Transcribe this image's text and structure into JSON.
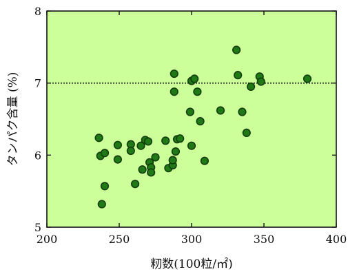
{
  "chart_data": {
    "type": "scatter",
    "title": "",
    "xlabel": "籾数(100粒/㎡)",
    "ylabel": "タンパク含量 (%)",
    "xlim": [
      200,
      400
    ],
    "ylim": [
      5,
      8
    ],
    "xticks": [
      "200",
      "250",
      "300",
      "350",
      "400"
    ],
    "yticks": [
      "5",
      "6",
      "7",
      "8"
    ],
    "xtick_values": [
      200,
      250,
      300,
      350,
      400
    ],
    "ytick_values": [
      5,
      6,
      7,
      8
    ],
    "reference_line_y": 7.0,
    "grid": false,
    "colors": {
      "plot_bg": "#ccff99",
      "point_fill": "#1f7a16",
      "point_stroke": "#143d0c"
    },
    "points": [
      {
        "x": 236,
        "y": 6.24
      },
      {
        "x": 237,
        "y": 5.99
      },
      {
        "x": 238,
        "y": 5.32
      },
      {
        "x": 240,
        "y": 6.03
      },
      {
        "x": 240,
        "y": 5.57
      },
      {
        "x": 249,
        "y": 6.14
      },
      {
        "x": 249,
        "y": 5.94
      },
      {
        "x": 258,
        "y": 6.15
      },
      {
        "x": 258,
        "y": 6.06
      },
      {
        "x": 261,
        "y": 5.6
      },
      {
        "x": 265,
        "y": 6.13
      },
      {
        "x": 266,
        "y": 5.8
      },
      {
        "x": 268,
        "y": 6.21
      },
      {
        "x": 270,
        "y": 6.19
      },
      {
        "x": 271,
        "y": 5.9
      },
      {
        "x": 272,
        "y": 5.83
      },
      {
        "x": 272,
        "y": 5.76
      },
      {
        "x": 275,
        "y": 5.97
      },
      {
        "x": 282,
        "y": 6.2
      },
      {
        "x": 284,
        "y": 5.82
      },
      {
        "x": 287,
        "y": 5.86
      },
      {
        "x": 287,
        "y": 5.93
      },
      {
        "x": 288,
        "y": 6.88
      },
      {
        "x": 288,
        "y": 7.13
      },
      {
        "x": 289,
        "y": 6.05
      },
      {
        "x": 290,
        "y": 6.22
      },
      {
        "x": 292,
        "y": 6.23
      },
      {
        "x": 299,
        "y": 6.6
      },
      {
        "x": 300,
        "y": 7.03
      },
      {
        "x": 300,
        "y": 6.13
      },
      {
        "x": 302,
        "y": 7.06
      },
      {
        "x": 304,
        "y": 6.88
      },
      {
        "x": 306,
        "y": 6.47
      },
      {
        "x": 309,
        "y": 5.92
      },
      {
        "x": 320,
        "y": 6.62
      },
      {
        "x": 331,
        "y": 7.46
      },
      {
        "x": 332,
        "y": 7.11
      },
      {
        "x": 335,
        "y": 6.6
      },
      {
        "x": 338,
        "y": 6.31
      },
      {
        "x": 341,
        "y": 6.95
      },
      {
        "x": 347,
        "y": 7.09
      },
      {
        "x": 348,
        "y": 7.02
      },
      {
        "x": 380,
        "y": 7.06
      }
    ]
  }
}
